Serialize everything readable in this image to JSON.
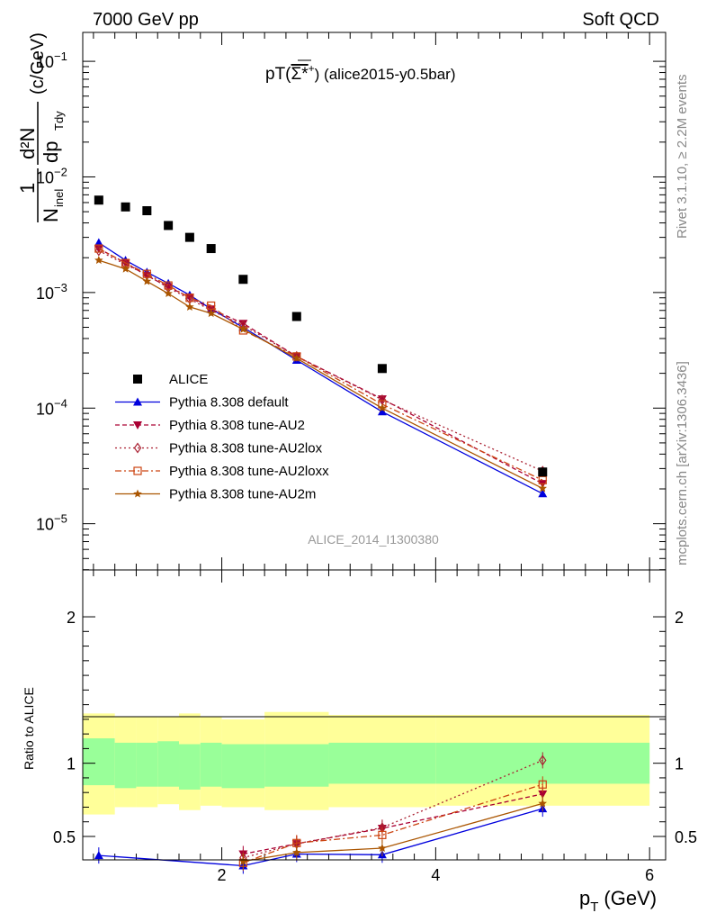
{
  "header": {
    "left": "7000 GeV pp",
    "right": "Soft QCD"
  },
  "side_labels": {
    "rivet": "Rivet 3.1.10, ≥ 2.2M events",
    "mcplots": "mcplots.cern.ch [arXiv:1306.3436]"
  },
  "plot": {
    "title_main": "pT(",
    "title_particle": "Σ*",
    "title_sup": "+",
    "title_rest": ") (alice2015-y0.5bar)",
    "watermark": "ALICE_2014_I1300380",
    "ylabel_top": "1",
    "ylabel_n": "N",
    "ylabel_inel": "inel",
    "ylabel_num": "d²N",
    "ylabel_den": "dp",
    "ylabel_den_sub": "Tdy",
    "ylabel_unit": "(c/GeV)",
    "ratio_ylabel": "Ratio to ALICE",
    "xlabel": "p",
    "xlabel_sub": "T",
    "xlabel_unit": "(GeV)"
  },
  "chart_data": {
    "type": "scatter",
    "x_range": [
      0.7,
      6.15
    ],
    "y_log_range": [
      -5.4,
      -0.75
    ],
    "ratio_range": [
      0.34,
      2.32
    ],
    "y_ticks": [
      {
        "value": 0.1,
        "base": "10",
        "exp": "−1"
      },
      {
        "value": 0.01,
        "base": "10",
        "exp": "−2"
      },
      {
        "value": 0.001,
        "base": "10",
        "exp": "−3"
      },
      {
        "value": 0.0001,
        "base": "10",
        "exp": "−4"
      },
      {
        "value": 1e-05,
        "base": "10",
        "exp": "−5"
      }
    ],
    "x_ticks": [
      "2",
      "4",
      "6"
    ],
    "ratio_ticks": [
      "0.5",
      "1",
      "2"
    ],
    "reference": {
      "name": "ALICE",
      "color": "#000000",
      "x": [
        0.85,
        1.1,
        1.3,
        1.5,
        1.7,
        1.9,
        2.2,
        2.7,
        3.5,
        5.0
      ],
      "y": [
        0.0063,
        0.0055,
        0.0051,
        0.0038,
        0.003,
        0.0024,
        0.0013,
        0.00062,
        0.00022,
        2.8e-05
      ],
      "bins": [
        0.7,
        1.0,
        1.2,
        1.4,
        1.6,
        1.8,
        2.0,
        2.4,
        3.0,
        4.0,
        6.0
      ],
      "band_inner": [
        [
          0.85,
          1.17
        ],
        [
          0.83,
          1.14
        ],
        [
          0.84,
          1.14
        ],
        [
          0.84,
          1.15
        ],
        [
          0.82,
          1.13
        ],
        [
          0.84,
          1.14
        ],
        [
          0.83,
          1.13
        ],
        [
          0.84,
          1.13
        ],
        [
          0.86,
          1.14
        ],
        [
          0.86,
          1.14
        ]
      ],
      "band_outer": [
        [
          0.65,
          1.34
        ],
        [
          0.7,
          1.32
        ],
        [
          0.7,
          1.32
        ],
        [
          0.72,
          1.32
        ],
        [
          0.68,
          1.34
        ],
        [
          0.71,
          1.32
        ],
        [
          0.7,
          1.3
        ],
        [
          0.68,
          1.35
        ],
        [
          0.7,
          1.33
        ],
        [
          0.71,
          1.33
        ]
      ]
    },
    "series": [
      {
        "name": "Pythia 8.308 default",
        "color": "#0000dd",
        "marker": "triangle-up",
        "dash": "",
        "x": [
          0.85,
          1.1,
          1.3,
          1.5,
          1.7,
          1.9,
          2.2,
          2.7,
          3.5,
          5.0
        ],
        "y": [
          0.0027,
          0.0019,
          0.0015,
          0.0012,
          0.00095,
          0.00072,
          0.0005,
          0.00026,
          9.3e-05,
          1.82e-05
        ],
        "ratio_x": [
          0.85,
          2.2,
          2.7,
          3.5,
          5.0
        ],
        "ratio_y": [
          0.37,
          0.3,
          0.38,
          0.375,
          0.69
        ]
      },
      {
        "name": "Pythia 8.308 tune-AU2",
        "color": "#aa0033",
        "marker": "triangle-down",
        "dash": "5,3",
        "x": [
          0.85,
          1.1,
          1.3,
          1.5,
          1.7,
          1.9,
          2.2,
          2.7,
          3.5,
          5.0
        ],
        "y": [
          0.0024,
          0.0018,
          0.0014,
          0.00112,
          0.00091,
          0.00072,
          0.00054,
          0.00028,
          0.00012,
          2.22e-05
        ],
        "ratio_x": [
          2.2,
          2.7,
          3.5,
          5.0
        ],
        "ratio_y": [
          0.38,
          0.45,
          0.555,
          0.79
        ]
      },
      {
        "name": "Pythia 8.308 tune-AU2lox",
        "color": "#aa2233",
        "marker": "diamond-open",
        "dash": "2,3",
        "x": [
          0.85,
          1.1,
          1.3,
          1.5,
          1.7,
          1.9,
          2.2,
          2.7,
          3.5,
          5.0
        ],
        "y": [
          0.0023,
          0.00175,
          0.00142,
          0.0011,
          0.00088,
          0.0007,
          0.00052,
          0.00028,
          0.000118,
          2.85e-05
        ],
        "ratio_x": [
          2.2,
          2.7,
          3.5,
          5.0
        ],
        "ratio_y": [
          0.355,
          0.45,
          0.56,
          1.02
        ]
      },
      {
        "name": "Pythia 8.308 tune-AU2loxx",
        "color": "#cc4411",
        "marker": "square-open",
        "dash": "7,3,2,3",
        "x": [
          0.85,
          1.1,
          1.3,
          1.5,
          1.7,
          1.9,
          2.2,
          2.7,
          3.5,
          5.0
        ],
        "y": [
          0.0024,
          0.0018,
          0.00145,
          0.00115,
          0.0009,
          0.00077,
          0.00047,
          0.00028,
          0.000108,
          2.38e-05
        ],
        "ratio_x": [
          2.2,
          2.7,
          3.5,
          5.0
        ],
        "ratio_y": [
          0.32,
          0.455,
          0.51,
          0.855
        ]
      },
      {
        "name": "Pythia 8.308 tune-AU2m",
        "color": "#aa5500",
        "marker": "star",
        "dash": "",
        "x": [
          0.85,
          1.1,
          1.3,
          1.5,
          1.7,
          1.9,
          2.2,
          2.7,
          3.5,
          5.0
        ],
        "y": [
          0.0019,
          0.0016,
          0.00125,
          0.00098,
          0.00075,
          0.00066,
          0.00048,
          0.00027,
          0.0001,
          2.02e-05
        ],
        "ratio_x": [
          2.2,
          2.7,
          3.5,
          5.0
        ],
        "ratio_y": [
          0.33,
          0.39,
          0.42,
          0.725
        ]
      }
    ]
  }
}
